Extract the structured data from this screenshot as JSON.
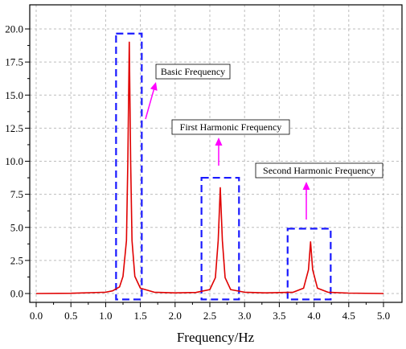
{
  "chart_data": {
    "type": "line",
    "title": "",
    "xlabel": "Frequency/Hz",
    "ylabel": "",
    "xlim": [
      0.0,
      5.0
    ],
    "ylim": [
      -0.5,
      20.5
    ],
    "grid": true,
    "xticks": [
      "0.0",
      "0.5",
      "1.0",
      "1.5",
      "2.0",
      "2.5",
      "3.0",
      "3.5",
      "4.0",
      "4.5",
      "5.0"
    ],
    "yticks": [
      "0.0",
      "2.5",
      "5.0",
      "7.5",
      "10.0",
      "12.5",
      "15.0",
      "17.5",
      "20.0"
    ],
    "series": [
      {
        "color": "#e00000",
        "x": [
          0.0,
          0.5,
          1.0,
          1.1,
          1.2,
          1.25,
          1.3,
          1.32,
          1.34,
          1.36,
          1.38,
          1.42,
          1.5,
          1.7,
          2.0,
          2.3,
          2.5,
          2.58,
          2.62,
          2.65,
          2.68,
          2.72,
          2.8,
          3.0,
          3.3,
          3.7,
          3.85,
          3.92,
          3.95,
          3.98,
          4.05,
          4.2,
          4.5,
          5.0
        ],
        "y": [
          0.0,
          0.02,
          0.1,
          0.2,
          0.5,
          1.3,
          4.0,
          10.0,
          19.0,
          10.0,
          4.0,
          1.3,
          0.4,
          0.1,
          0.05,
          0.08,
          0.3,
          1.2,
          4.0,
          8.0,
          4.0,
          1.2,
          0.3,
          0.1,
          0.05,
          0.1,
          0.4,
          1.8,
          3.9,
          1.8,
          0.4,
          0.1,
          0.03,
          0.0
        ]
      }
    ],
    "annotations": [
      {
        "label": "Basic Frequency",
        "box": {
          "x": [
            1.15,
            1.52
          ],
          "y": [
            -0.45,
            19.65
          ]
        }
      },
      {
        "label": "First Harmonic Frequency",
        "box": {
          "x": [
            2.38,
            2.92
          ],
          "y": [
            -0.45,
            8.75
          ]
        }
      },
      {
        "label": "Second Harmonic Frequency",
        "box": {
          "x": [
            3.62,
            4.24
          ],
          "y": [
            -0.45,
            4.9
          ]
        }
      }
    ]
  },
  "colors": {
    "line": "#e00000",
    "box": "#1a1aff",
    "arrow": "#ff00ff",
    "grid": "#bdbdbd"
  }
}
